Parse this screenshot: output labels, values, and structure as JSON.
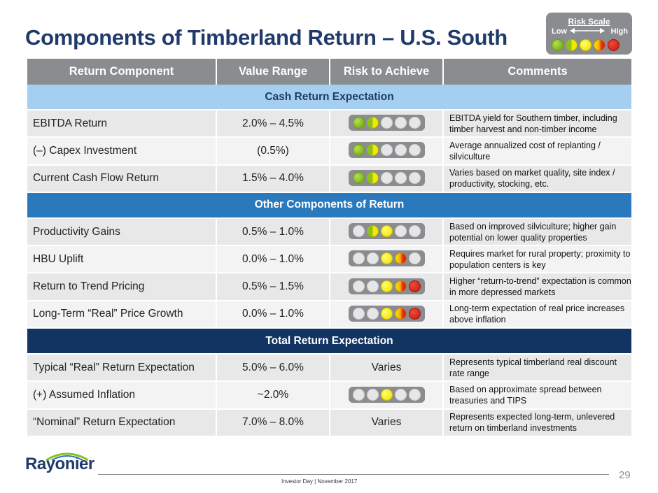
{
  "title": "Components of Timberland Return – U.S. South",
  "risk_scale": {
    "title": "Risk Scale",
    "low": "Low",
    "high": "High",
    "levels": [
      "green",
      "green-yellow",
      "yellow",
      "yellow-red",
      "red"
    ]
  },
  "table": {
    "headers": [
      "Return Component",
      "Value Range",
      "Risk to Achieve",
      "Comments"
    ],
    "sections": [
      {
        "title": "Cash Return Expectation",
        "style": "light",
        "rows": [
          {
            "component": "EBITDA Return",
            "value": "2.0% – 4.5%",
            "risk": [
              "green",
              "green-yellow",
              "empty",
              "empty",
              "empty"
            ],
            "comment": "EBITDA yield for Southern timber, including timber harvest and non-timber income"
          },
          {
            "component": "(–) Capex Investment",
            "value": "(0.5%)",
            "risk": [
              "green",
              "green-yellow",
              "empty",
              "empty",
              "empty"
            ],
            "comment": "Average annualized cost of replanting / silviculture"
          },
          {
            "component": "Current Cash Flow Return",
            "value": "1.5% – 4.0%",
            "risk": [
              "green",
              "green-yellow",
              "empty",
              "empty",
              "empty"
            ],
            "comment": "Varies based on market quality, site index / productivity, stocking, etc."
          }
        ]
      },
      {
        "title": "Other Components of Return",
        "style": "mid",
        "rows": [
          {
            "component": "Productivity Gains",
            "value": "0.5% – 1.0%",
            "risk": [
              "empty",
              "green-yellow",
              "yellow",
              "empty",
              "empty"
            ],
            "comment": "Based on improved silviculture; higher gain potential on lower quality properties"
          },
          {
            "component": "HBU Uplift",
            "value": "0.0% – 1.0%",
            "risk": [
              "empty",
              "empty",
              "yellow",
              "yellow-red",
              "empty"
            ],
            "comment": "Requires market for rural property; proximity to population centers is key"
          },
          {
            "component": "Return to Trend Pricing",
            "value": "0.5% – 1.5%",
            "risk": [
              "empty",
              "empty",
              "yellow",
              "yellow-red",
              "red"
            ],
            "comment": "Higher “return-to-trend” expectation is common in more depressed markets"
          },
          {
            "component": "Long-Term “Real” Price Growth",
            "value": "0.0% – 1.0%",
            "risk": [
              "empty",
              "empty",
              "yellow",
              "yellow-red",
              "red"
            ],
            "comment": "Long-term expectation of real price increases above inflation"
          }
        ]
      },
      {
        "title": "Total Return Expectation",
        "style": "dark",
        "rows": [
          {
            "component": "Typical “Real” Return Expectation",
            "value": "5.0% – 6.0%",
            "risk_text": "Varies",
            "comment": "Represents typical timberland real discount rate range"
          },
          {
            "component": "(+) Assumed Inflation",
            "value": "~2.0%",
            "risk": [
              "empty",
              "empty",
              "yellow",
              "empty",
              "empty"
            ],
            "comment": "Based on approximate spread between treasuries and TIPS"
          },
          {
            "component": "“Nominal” Return Expectation",
            "value": "7.0% – 8.0%",
            "risk_text": "Varies",
            "comment": "Represents expected long-term, unlevered return on timberland investments"
          }
        ]
      }
    ]
  },
  "footer": {
    "logo": "Rayonier",
    "text": "Investor Day  |  November 2017",
    "page": "29"
  },
  "colors": {
    "title": "#1f3a6b",
    "header_gray": "#8a8c90",
    "section_light": "#a5cff0",
    "section_mid": "#2b79bd",
    "section_dark": "#123463"
  }
}
